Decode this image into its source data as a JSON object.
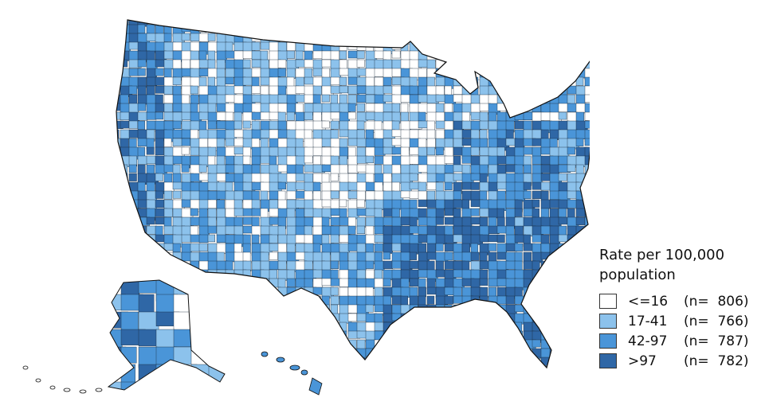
{
  "legend": {
    "title": "Rate per 100,000 population",
    "items": [
      {
        "label": "<=16",
        "count_text": "(n=  806)",
        "color": "#ffffff"
      },
      {
        "label": "17-41",
        "count_text": "(n=  766)",
        "color": "#8cc2ec"
      },
      {
        "label": "42-97",
        "count_text": "(n=  787)",
        "color": "#4a95d8"
      },
      {
        "label": ">97",
        "count_text": "(n=  782)",
        "color": "#2f67a6"
      }
    ]
  }
}
